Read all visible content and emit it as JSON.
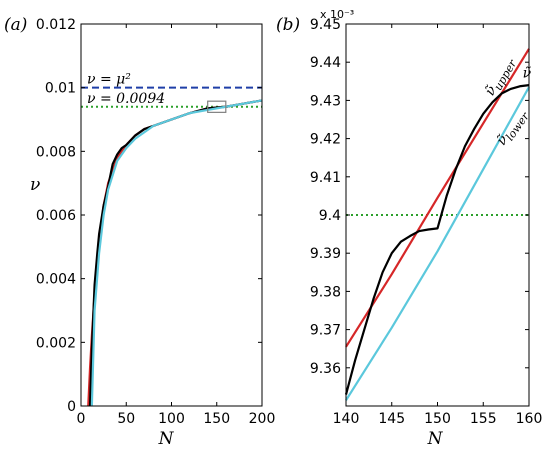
{
  "colors": {
    "red": "#d62728",
    "black": "#000000",
    "cyan": "#5bc8dc",
    "blue_dashed": "#1f3fa8",
    "green_dotted": "#2ca02c",
    "box": "#808080"
  },
  "chart_data": [
    {
      "type": "line",
      "panel_label": "(a)",
      "xlabel": "N",
      "ylabel": "ν",
      "xlim": [
        0,
        200
      ],
      "ylim": [
        0,
        0.012
      ],
      "xticks": [
        "0",
        "50",
        "100",
        "150",
        "200"
      ],
      "xtick_values": [
        0,
        50,
        100,
        150,
        200
      ],
      "yticks": [
        "0",
        "0.002",
        "0.004",
        "0.006",
        "0.008",
        "0.01",
        "0.012"
      ],
      "ytick_values": [
        0,
        0.002,
        0.004,
        0.006,
        0.008,
        0.01,
        0.012
      ],
      "hlines": [
        {
          "label": "ν = μ²",
          "y": 0.01,
          "style": "dashed",
          "color": "#1f3fa8"
        },
        {
          "label": "ν = 0.0094",
          "y": 0.0094,
          "style": "dotted",
          "color": "#2ca02c"
        }
      ],
      "zoom_box": {
        "x": [
          140,
          160
        ],
        "y": [
          0.00935,
          0.00945
        ]
      },
      "series": [
        {
          "color": "#d62728",
          "x": [
            8,
            10,
            12,
            15,
            20,
            25,
            30,
            40,
            50,
            60,
            70,
            80,
            100,
            120,
            140,
            160,
            180,
            200
          ],
          "y": [
            0,
            0.0012,
            0.0022,
            0.0035,
            0.0052,
            0.0063,
            0.007,
            0.0078,
            0.0082,
            0.0085,
            0.0087,
            0.0088,
            0.009,
            0.0092,
            0.00935,
            0.0094,
            0.0095,
            0.0096
          ]
        },
        {
          "color": "#000000",
          "x": [
            10,
            12,
            15,
            18,
            20,
            25,
            30,
            35,
            40,
            45,
            50,
            60,
            70,
            80,
            100,
            120,
            140,
            160,
            180,
            200
          ],
          "y": [
            0,
            0.0018,
            0.0038,
            0.0048,
            0.0054,
            0.0063,
            0.0069,
            0.0076,
            0.0079,
            0.0081,
            0.0082,
            0.0085,
            0.0087,
            0.0088,
            0.009,
            0.0092,
            0.00935,
            0.0094,
            0.0095,
            0.0096
          ]
        },
        {
          "color": "#5bc8dc",
          "x": [
            12,
            15,
            20,
            25,
            30,
            40,
            50,
            60,
            70,
            80,
            100,
            120,
            140,
            160,
            180,
            200
          ],
          "y": [
            0,
            0.003,
            0.0048,
            0.006,
            0.0068,
            0.0077,
            0.0081,
            0.0084,
            0.0086,
            0.0088,
            0.009,
            0.0092,
            0.0093,
            0.0094,
            0.0095,
            0.0096
          ]
        }
      ]
    },
    {
      "type": "line",
      "panel_label": "(b)",
      "xlabel": "N",
      "exponent_label": "x 10⁻³",
      "xlim": [
        140,
        160
      ],
      "ylim": [
        9.35,
        9.45
      ],
      "xticks": [
        "140",
        "145",
        "150",
        "155",
        "160"
      ],
      "xtick_values": [
        140,
        145,
        150,
        155,
        160
      ],
      "yticks": [
        "9.36",
        "9.37",
        "9.38",
        "9.39",
        "9.4",
        "9.41",
        "9.42",
        "9.43",
        "9.44",
        "9.45"
      ],
      "ytick_values": [
        9.36,
        9.37,
        9.38,
        9.39,
        9.4,
        9.41,
        9.42,
        9.43,
        9.44,
        9.45
      ],
      "hlines": [
        {
          "y": 9.4,
          "style": "dotted",
          "color": "#2ca02c"
        }
      ],
      "annotations": [
        {
          "text": "ν̃",
          "sub": "upper",
          "x": 156.0,
          "y": 9.431,
          "rotate": -60
        },
        {
          "text": "ν̃",
          "sub": "lower",
          "x": 157.2,
          "y": 9.418,
          "rotate": -55
        },
        {
          "text": "ν̃",
          "sub": "",
          "x": 159.3,
          "y": 9.436,
          "rotate": 0
        }
      ],
      "series": [
        {
          "color": "#d62728",
          "x": [
            140,
            145,
            150,
            155,
            160
          ],
          "y": [
            9.3655,
            9.3845,
            9.4045,
            9.424,
            9.4435
          ]
        },
        {
          "color": "#5bc8dc",
          "x": [
            140,
            145,
            150,
            155,
            160
          ],
          "y": [
            9.3515,
            9.3705,
            9.3905,
            9.412,
            9.4335
          ]
        },
        {
          "color": "#000000",
          "x": [
            140,
            141,
            142,
            143,
            144,
            145,
            146,
            147,
            148,
            149,
            150,
            151,
            152,
            153,
            154,
            155,
            156,
            157,
            158,
            159,
            160
          ],
          "y": [
            9.353,
            9.362,
            9.37,
            9.378,
            9.385,
            9.39,
            9.393,
            9.3945,
            9.3958,
            9.3962,
            9.3965,
            9.405,
            9.412,
            9.418,
            9.4225,
            9.4265,
            9.4295,
            9.4318,
            9.433,
            9.4337,
            9.434
          ]
        }
      ]
    }
  ]
}
